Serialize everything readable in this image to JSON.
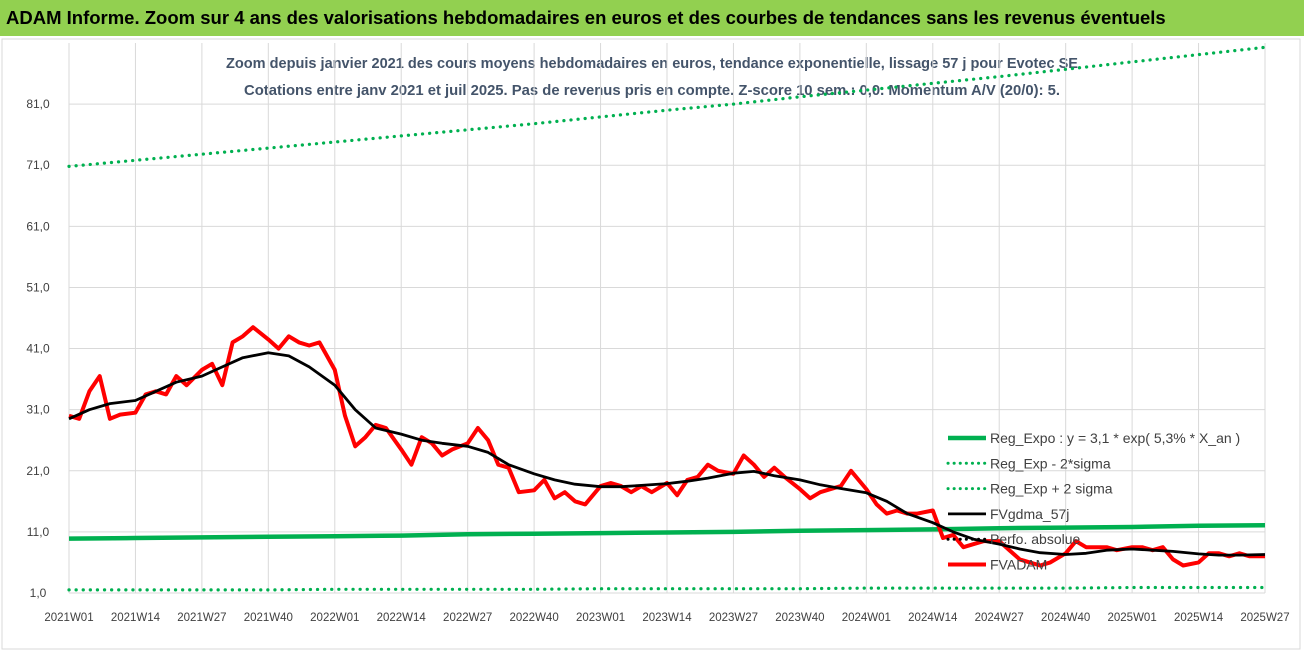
{
  "banner": {
    "title": "ADAM Informe. Zoom sur 4 ans des valorisations hebdomadaires en euros et des courbes de tendances sans les revenus éventuels"
  },
  "colors": {
    "banner_bg": "#92d050",
    "title_text": "#44546a",
    "reg_expo": "#00b050",
    "fvgdma": "#000000",
    "fvadam": "#ff0000",
    "grid": "#d9d9d9"
  },
  "chart_data": {
    "type": "line",
    "title_line1": "Zoom depuis janvier 2021 des cours moyens hebdomadaires en euros, tendance exponentielle, lissage 57 j pour Evotec SE",
    "title_line2": "Cotations entre janv 2021 et juil 2025. Pas de revenus pris en compte. Z-score 10 sem.: 0,0. Momentum A/V (20/0): 5.",
    "ylim": [
      1,
      91
    ],
    "y_ticks": [
      "1,0",
      "11,0",
      "21,0",
      "31,0",
      "41,0",
      "51,0",
      "61,0",
      "71,0",
      "81,0"
    ],
    "y_tick_values": [
      1,
      11,
      21,
      31,
      41,
      51,
      61,
      71,
      81
    ],
    "x_ticks": [
      "2021W01",
      "2021W14",
      "2021W27",
      "2021W40",
      "2022W01",
      "2022W14",
      "2022W27",
      "2022W40",
      "2023W01",
      "2023W14",
      "2023W27",
      "2023W40",
      "2024W01",
      "2024W14",
      "2024W27",
      "2024W40",
      "2025W01",
      "2025W14",
      "2025W27"
    ],
    "grid": true,
    "legend_position": "bottom-right",
    "legend": [
      {
        "label": "Reg_Expo : y = 3,1 * exp( 5,3% *  X_an )",
        "style": "solid",
        "color": "#00b050"
      },
      {
        "label": "Reg_Exp - 2*sigma",
        "style": "dotted",
        "color": "#00b050"
      },
      {
        "label": "Reg_Exp + 2 sigma",
        "style": "dotted",
        "color": "#00b050"
      },
      {
        "label": "FVgdma_57j",
        "style": "solid",
        "color": "#000000"
      },
      {
        "label": "Perfo. absolue",
        "style": "dotted",
        "color": "#000000"
      },
      {
        "label": "FVADAM",
        "style": "solid",
        "color": "#ff0000"
      }
    ],
    "series": [
      {
        "name": "Reg_Expo : y = 3,1 * exp( 5,3% *  X_an )",
        "style": "solid",
        "x": [
          "2021W01",
          "2021W14",
          "2021W27",
          "2021W40",
          "2022W01",
          "2022W14",
          "2022W27",
          "2022W40",
          "2023W01",
          "2023W14",
          "2023W27",
          "2023W40",
          "2024W01",
          "2024W14",
          "2024W27",
          "2024W40",
          "2025W01",
          "2025W14",
          "2025W27"
        ],
        "values": [
          9.9,
          10.0,
          10.1,
          10.2,
          10.3,
          10.4,
          10.6,
          10.7,
          10.8,
          10.9,
          11.0,
          11.2,
          11.3,
          11.4,
          11.6,
          11.7,
          11.8,
          12.0,
          12.1
        ]
      },
      {
        "name": "Reg_Exp - 2*sigma",
        "style": "dotted",
        "x": [
          "2021W01",
          "2021W14",
          "2021W27",
          "2021W40",
          "2022W01",
          "2022W14",
          "2022W27",
          "2022W40",
          "2023W01",
          "2023W14",
          "2023W27",
          "2023W40",
          "2024W01",
          "2024W14",
          "2024W27",
          "2024W40",
          "2025W01",
          "2025W14",
          "2025W27"
        ],
        "values": [
          1.5,
          1.5,
          1.5,
          1.5,
          1.6,
          1.6,
          1.6,
          1.6,
          1.7,
          1.7,
          1.7,
          1.7,
          1.8,
          1.8,
          1.8,
          1.8,
          1.9,
          1.9,
          1.9
        ]
      },
      {
        "name": "Reg_Exp + 2 sigma",
        "style": "dotted",
        "x": [
          "2021W01",
          "2021W14",
          "2021W27",
          "2021W40",
          "2022W01",
          "2022W14",
          "2022W27",
          "2022W40",
          "2023W01",
          "2023W14",
          "2023W27",
          "2023W40",
          "2024W01",
          "2024W14",
          "2024W27",
          "2024W40",
          "2025W01",
          "2025W14",
          "2025W27"
        ],
        "values": [
          70.8,
          71.8,
          72.8,
          73.8,
          74.8,
          75.8,
          76.8,
          77.8,
          78.9,
          80.0,
          81.0,
          82.2,
          83.3,
          84.4,
          85.5,
          86.7,
          87.9,
          89.1,
          90.3
        ]
      },
      {
        "name": "FVgdma_57j",
        "style": "solid",
        "x": [
          "2021W01",
          "2021W05",
          "2021W09",
          "2021W14",
          "2021W18",
          "2021W22",
          "2021W27",
          "2021W31",
          "2021W35",
          "2021W40",
          "2021W44",
          "2021W48",
          "2022W01",
          "2022W05",
          "2022W09",
          "2022W14",
          "2022W18",
          "2022W22",
          "2022W27",
          "2022W31",
          "2022W35",
          "2022W40",
          "2022W44",
          "2022W48",
          "2023W01",
          "2023W05",
          "2023W09",
          "2023W14",
          "2023W18",
          "2023W22",
          "2023W27",
          "2023W31",
          "2023W35",
          "2023W40",
          "2023W44",
          "2023W48",
          "2024W01",
          "2024W05",
          "2024W09",
          "2024W14",
          "2024W18",
          "2024W22",
          "2024W27",
          "2024W31",
          "2024W35",
          "2024W40",
          "2024W44",
          "2024W48",
          "2025W01",
          "2025W05",
          "2025W09",
          "2025W14",
          "2025W18",
          "2025W22",
          "2025W27"
        ],
        "values": [
          29.5,
          31.0,
          32.0,
          32.5,
          34.0,
          35.5,
          36.5,
          38.0,
          39.5,
          40.3,
          39.8,
          38.0,
          35.0,
          31.0,
          28.0,
          27.0,
          26.0,
          25.5,
          25.0,
          24.0,
          22.0,
          20.5,
          19.5,
          18.8,
          18.4,
          18.4,
          18.6,
          18.9,
          19.3,
          19.8,
          20.6,
          20.9,
          20.2,
          19.5,
          18.7,
          18.1,
          17.4,
          16.0,
          14.0,
          12.5,
          11.0,
          9.8,
          9.0,
          8.2,
          7.6,
          7.3,
          7.5,
          8.0,
          8.2,
          8.0,
          7.8,
          7.4,
          7.2,
          7.2,
          7.3
        ]
      },
      {
        "name": "FVADAM",
        "style": "solid",
        "x": [
          "2021W01",
          "2021W03",
          "2021W05",
          "2021W07",
          "2021W09",
          "2021W11",
          "2021W14",
          "2021W16",
          "2021W18",
          "2021W20",
          "2021W22",
          "2021W24",
          "2021W27",
          "2021W29",
          "2021W31",
          "2021W33",
          "2021W35",
          "2021W37",
          "2021W40",
          "2021W42",
          "2021W44",
          "2021W46",
          "2021W48",
          "2021W50",
          "2022W01",
          "2022W03",
          "2022W05",
          "2022W07",
          "2022W09",
          "2022W11",
          "2022W14",
          "2022W16",
          "2022W18",
          "2022W20",
          "2022W22",
          "2022W24",
          "2022W27",
          "2022W29",
          "2022W31",
          "2022W33",
          "2022W35",
          "2022W37",
          "2022W40",
          "2022W42",
          "2022W44",
          "2022W46",
          "2022W48",
          "2022W50",
          "2023W01",
          "2023W03",
          "2023W05",
          "2023W07",
          "2023W09",
          "2023W11",
          "2023W14",
          "2023W16",
          "2023W18",
          "2023W20",
          "2023W22",
          "2023W24",
          "2023W27",
          "2023W29",
          "2023W31",
          "2023W33",
          "2023W35",
          "2023W37",
          "2023W40",
          "2023W42",
          "2023W44",
          "2023W46",
          "2023W48",
          "2023W50",
          "2024W01",
          "2024W03",
          "2024W05",
          "2024W07",
          "2024W09",
          "2024W11",
          "2024W14",
          "2024W16",
          "2024W18",
          "2024W20",
          "2024W22",
          "2024W24",
          "2024W27",
          "2024W29",
          "2024W31",
          "2024W33",
          "2024W35",
          "2024W37",
          "2024W40",
          "2024W42",
          "2024W44",
          "2024W46",
          "2024W48",
          "2024W50",
          "2025W01",
          "2025W03",
          "2025W05",
          "2025W07",
          "2025W09",
          "2025W11",
          "2025W14",
          "2025W16",
          "2025W18",
          "2025W20",
          "2025W22",
          "2025W24",
          "2025W27"
        ],
        "values": [
          30.0,
          29.5,
          34.0,
          36.5,
          29.5,
          30.2,
          30.5,
          33.5,
          34.0,
          33.5,
          36.5,
          35.0,
          37.5,
          38.5,
          35.0,
          42.0,
          43.0,
          44.5,
          42.5,
          41.0,
          43.0,
          42.0,
          41.5,
          42.0,
          37.5,
          30.0,
          25.0,
          26.5,
          28.5,
          28.0,
          24.5,
          22.0,
          26.5,
          25.5,
          23.5,
          24.5,
          25.5,
          28.0,
          26.0,
          22.0,
          21.5,
          17.5,
          17.8,
          19.5,
          16.5,
          17.5,
          16.0,
          15.5,
          18.5,
          19.0,
          18.5,
          17.5,
          18.5,
          17.5,
          19.0,
          17.0,
          19.5,
          20.0,
          22.0,
          21.0,
          20.5,
          23.5,
          22.0,
          20.0,
          21.5,
          20.0,
          18.0,
          16.5,
          17.5,
          18.0,
          18.5,
          21.0,
          18.0,
          15.5,
          14.0,
          14.5,
          14.0,
          14.0,
          14.5,
          10.0,
          10.5,
          8.5,
          9.0,
          9.5,
          9.5,
          8.0,
          6.5,
          6.0,
          5.5,
          6.0,
          7.5,
          9.5,
          8.5,
          8.5,
          8.5,
          8.0,
          8.5,
          8.5,
          8.0,
          8.5,
          6.5,
          5.5,
          6.0,
          7.5,
          7.5,
          7.0,
          7.5,
          7.0,
          7.0
        ]
      }
    ]
  }
}
